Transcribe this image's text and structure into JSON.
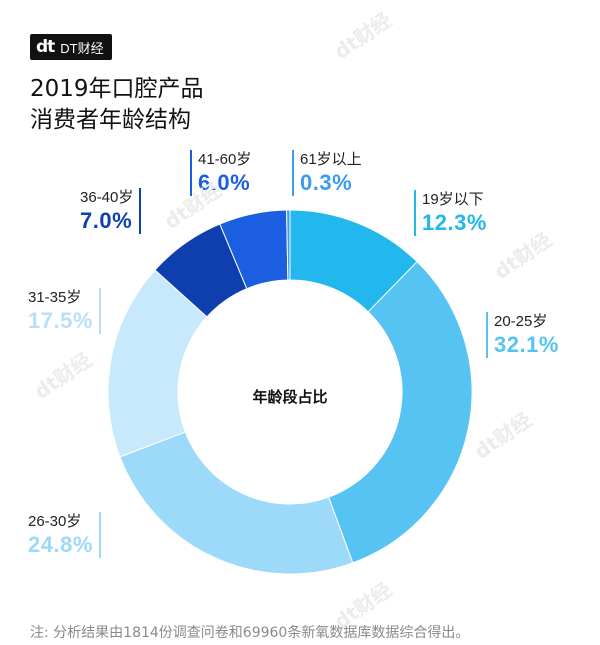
{
  "brand": {
    "mark": "dt",
    "name": "DT财经",
    "watermark": "dt财经"
  },
  "title": {
    "line1": "2019年口腔产品",
    "line2": "消费者年龄结构"
  },
  "center_label": "年龄段占比",
  "footer": "注: 分析结果由1814份调查问卷和69960条新氧数据库数据综合得出。",
  "chart_data": {
    "type": "pie",
    "donut": true,
    "center_text": "年龄段占比",
    "slices": [
      {
        "label": "19岁以下",
        "value": 12.3,
        "display": "12.3%",
        "color": "#22b8ee"
      },
      {
        "label": "20-25岁",
        "value": 32.1,
        "display": "32.1%",
        "color": "#57c3f2"
      },
      {
        "label": "26-30岁",
        "value": 24.8,
        "display": "24.8%",
        "color": "#9dd9f8"
      },
      {
        "label": "31-35岁",
        "value": 17.5,
        "display": "17.5%",
        "color": "#c8e9fb"
      },
      {
        "label": "36-40岁",
        "value": 7.0,
        "display": "7.0%",
        "color": "#0f3fae"
      },
      {
        "label": "41-60岁",
        "value": 6.0,
        "display": "6.0%",
        "color": "#1b5fe0"
      },
      {
        "label": "61岁以上",
        "value": 0.3,
        "display": "0.3%",
        "color": "#3a9bf0"
      }
    ]
  }
}
